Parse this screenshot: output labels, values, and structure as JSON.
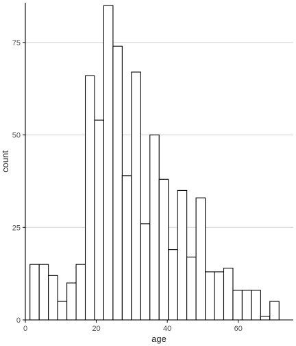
{
  "chart_data": {
    "type": "bar",
    "xlabel": "age",
    "ylabel": "count",
    "x_ticks": [
      0,
      20,
      40,
      60
    ],
    "y_ticks": [
      0,
      25,
      50,
      75
    ],
    "xlim": [
      0,
      75.5
    ],
    "ylim": [
      0,
      85
    ],
    "grid": "horizontal",
    "bin_width": 2.6,
    "bins": [
      {
        "x0": 1.3,
        "x1": 3.9,
        "count": 15
      },
      {
        "x0": 3.9,
        "x1": 6.5,
        "count": 15
      },
      {
        "x0": 6.5,
        "x1": 9.1,
        "count": 12
      },
      {
        "x0": 9.1,
        "x1": 11.7,
        "count": 5
      },
      {
        "x0": 11.7,
        "x1": 14.3,
        "count": 10
      },
      {
        "x0": 14.3,
        "x1": 16.9,
        "count": 15
      },
      {
        "x0": 16.9,
        "x1": 19.5,
        "count": 66
      },
      {
        "x0": 19.5,
        "x1": 22.1,
        "count": 54
      },
      {
        "x0": 22.1,
        "x1": 24.7,
        "count": 85
      },
      {
        "x0": 24.7,
        "x1": 27.3,
        "count": 74
      },
      {
        "x0": 27.3,
        "x1": 29.9,
        "count": 39
      },
      {
        "x0": 29.9,
        "x1": 32.5,
        "count": 67
      },
      {
        "x0": 32.5,
        "x1": 35.1,
        "count": 26
      },
      {
        "x0": 35.1,
        "x1": 37.7,
        "count": 50
      },
      {
        "x0": 37.7,
        "x1": 40.3,
        "count": 38
      },
      {
        "x0": 40.3,
        "x1": 42.9,
        "count": 19
      },
      {
        "x0": 42.9,
        "x1": 45.5,
        "count": 35
      },
      {
        "x0": 45.5,
        "x1": 48.1,
        "count": 17
      },
      {
        "x0": 48.1,
        "x1": 50.7,
        "count": 33
      },
      {
        "x0": 50.7,
        "x1": 53.3,
        "count": 13
      },
      {
        "x0": 53.3,
        "x1": 55.9,
        "count": 13
      },
      {
        "x0": 55.9,
        "x1": 58.5,
        "count": 14
      },
      {
        "x0": 58.5,
        "x1": 61.1,
        "count": 8
      },
      {
        "x0": 61.1,
        "x1": 63.7,
        "count": 8
      },
      {
        "x0": 63.7,
        "x1": 66.3,
        "count": 8
      },
      {
        "x0": 66.3,
        "x1": 68.9,
        "count": 1
      },
      {
        "x0": 68.9,
        "x1": 71.5,
        "count": 5
      }
    ],
    "colors": {
      "bar_fill": "#ffffff",
      "bar_stroke": "#000000",
      "grid": "#d0d0d0",
      "axis": "#000000"
    }
  }
}
